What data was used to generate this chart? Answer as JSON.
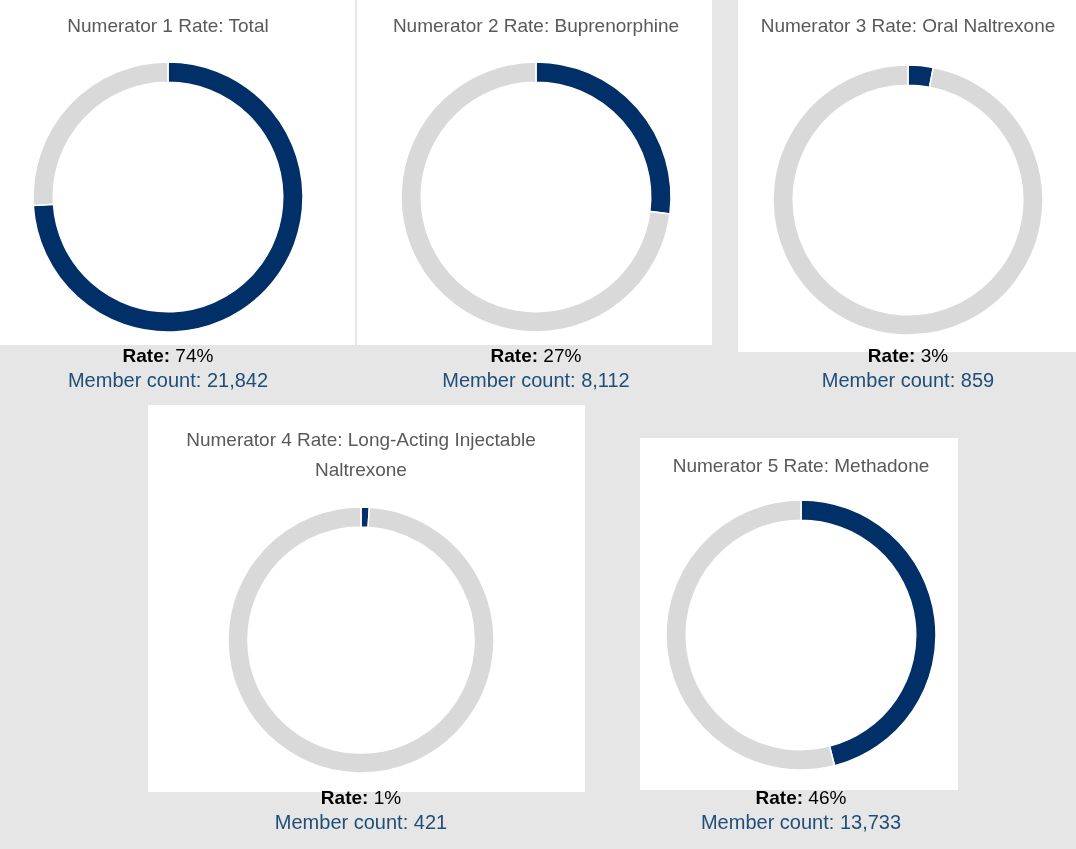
{
  "chart_data": [
    {
      "type": "donut",
      "title": "Numerator 1 Rate: Total",
      "categories": [
        null,
        null
      ],
      "values": [
        74,
        26
      ],
      "colors": [
        "#003067",
        "#d9d9d9"
      ],
      "annotations": [
        "Rate: 74%",
        "Member count: 21,842"
      ]
    },
    {
      "type": "donut",
      "title": "Numerator 2 Rate: Buprenorphine",
      "categories": [
        null,
        null
      ],
      "values": [
        27,
        73
      ],
      "colors": [
        "#003067",
        "#d9d9d9"
      ],
      "annotations": [
        "Rate: 27%",
        "Member count: 8,112"
      ]
    },
    {
      "type": "donut",
      "title": "Numerator 3 Rate: Oral Naltrexone",
      "categories": [
        null,
        null
      ],
      "values": [
        3,
        97
      ],
      "colors": [
        "#003067",
        "#d9d9d9"
      ],
      "annotations": [
        "Rate: 3%",
        "Member count: 859"
      ]
    },
    {
      "type": "donut",
      "title": "Numerator 4 Rate: Long-Acting Injectable Naltrexone",
      "categories": [
        null,
        null
      ],
      "values": [
        1,
        99
      ],
      "colors": [
        "#003067",
        "#d9d9d9"
      ],
      "annotations": [
        "Rate: 1%",
        "Member count: 421"
      ]
    },
    {
      "type": "donut",
      "title": "Numerator 5 Rate: Methadone",
      "categories": [
        null,
        null
      ],
      "values": [
        46,
        54
      ],
      "colors": [
        "#003067",
        "#d9d9d9"
      ],
      "annotations": [
        "Rate: 46%",
        "Member count: 13,733"
      ]
    }
  ]
}
